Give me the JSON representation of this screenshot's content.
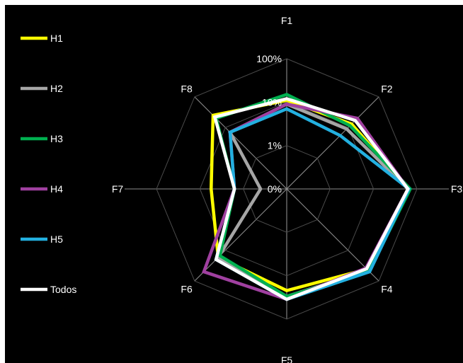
{
  "chart_data": {
    "type": "radar",
    "axes": [
      "F1",
      "F2",
      "F3",
      "F4",
      "F5",
      "F6",
      "F7",
      "F8"
    ],
    "scale": "log",
    "scale_ticks": [
      "0%",
      "1%",
      "10%",
      "100%"
    ],
    "tick_values": [
      0.1,
      1,
      10,
      100
    ],
    "range": [
      0.1,
      100
    ],
    "grid": true,
    "legend_position": "left",
    "series": [
      {
        "name": "H1",
        "color": "#ffff00",
        "values": [
          11.0,
          13.0,
          62.0,
          41.0,
          22.0,
          17.0,
          5.5,
          25.0
        ]
      },
      {
        "name": "H2",
        "color": "#a6a6a6",
        "values": [
          9.0,
          9.0,
          62.0,
          45.0,
          30.0,
          17.0,
          0.4,
          7.0
        ]
      },
      {
        "name": "H3",
        "color": "#00b050",
        "values": [
          15.0,
          11.5,
          70.0,
          48.0,
          30.0,
          15.0,
          1.6,
          20.0
        ]
      },
      {
        "name": "H4",
        "color": "#a040a0",
        "values": [
          9.0,
          20.0,
          62.0,
          38.0,
          35.0,
          50.0,
          1.6,
          7.0
        ]
      },
      {
        "name": "H5",
        "color": "#23b0e0",
        "values": [
          7.0,
          5.5,
          65.0,
          50.0,
          35.0,
          20.0,
          1.6,
          7.0
        ]
      },
      {
        "name": "Todos",
        "color": "#ffffff",
        "values": [
          12.0,
          17.0,
          62.0,
          40.0,
          35.0,
          20.0,
          1.6,
          22.0
        ]
      }
    ]
  }
}
